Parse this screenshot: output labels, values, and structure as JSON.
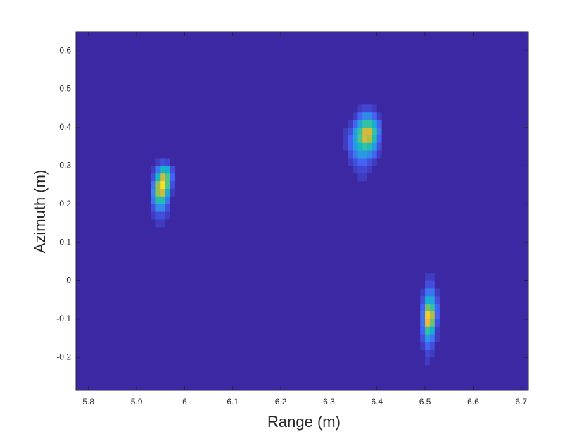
{
  "chart_data": {
    "type": "heatmap",
    "xlabel": "Range (m)",
    "ylabel": "Azimuth (m)",
    "xlim": [
      5.774,
      6.715
    ],
    "ylim": [
      -0.286,
      0.65
    ],
    "xticks": [
      5.8,
      5.9,
      6,
      6.1,
      6.2,
      6.3,
      6.4,
      6.5,
      6.6,
      6.7
    ],
    "yticks": [
      -0.2,
      -0.1,
      0,
      0.1,
      0.2,
      0.3,
      0.4,
      0.5,
      0.6
    ],
    "clim": [
      0,
      1
    ],
    "cell_width": 0.01,
    "cell_height": 0.02,
    "colormap": [
      "#3c28a2",
      "#4560f5",
      "#2d96e6",
      "#10b5cd",
      "#38c59b",
      "#9ebf4a",
      "#f1b83a",
      "#f9fb15"
    ],
    "blocks": [
      {
        "x": [
          5.935,
          5.945,
          5.955,
          5.965,
          5.975
        ],
        "y": [
          0.31,
          0.29,
          0.27,
          0.25,
          0.23,
          0.21,
          0.19,
          0.17,
          0.15
        ],
        "values": [
          [
            0,
            0.05,
            0.1,
            0.08,
            0
          ],
          [
            0.05,
            0.2,
            0.45,
            0.4,
            0.1
          ],
          [
            0.1,
            0.45,
            0.8,
            0.6,
            0.15
          ],
          [
            0.2,
            0.7,
            0.95,
            0.6,
            0.1
          ],
          [
            0.25,
            0.7,
            0.8,
            0.4,
            0.05
          ],
          [
            0.2,
            0.5,
            0.5,
            0.2,
            0
          ],
          [
            0.1,
            0.25,
            0.25,
            0.1,
            0
          ],
          [
            0.05,
            0.1,
            0.1,
            0.05,
            0
          ],
          [
            0,
            0.05,
            0.05,
            0,
            0
          ]
        ]
      },
      {
        "x": [
          6.335,
          6.345,
          6.355,
          6.365,
          6.375,
          6.385,
          6.395,
          6.405,
          6.415
        ],
        "y": [
          0.45,
          0.43,
          0.41,
          0.39,
          0.37,
          0.35,
          0.33,
          0.31,
          0.29,
          0.27
        ],
        "values": [
          [
            0,
            0,
            0,
            0.05,
            0.08,
            0.08,
            0.05,
            0,
            0
          ],
          [
            0,
            0,
            0.05,
            0.15,
            0.25,
            0.25,
            0.15,
            0.05,
            0
          ],
          [
            0,
            0.05,
            0.15,
            0.35,
            0.55,
            0.55,
            0.4,
            0.15,
            0
          ],
          [
            0.05,
            0.1,
            0.3,
            0.55,
            0.8,
            0.8,
            0.55,
            0.2,
            0
          ],
          [
            0.05,
            0.15,
            0.35,
            0.6,
            0.8,
            0.75,
            0.5,
            0.15,
            0
          ],
          [
            0.05,
            0.15,
            0.3,
            0.45,
            0.55,
            0.5,
            0.3,
            0.1,
            0
          ],
          [
            0,
            0.1,
            0.2,
            0.3,
            0.3,
            0.25,
            0.15,
            0.05,
            0
          ],
          [
            0,
            0.05,
            0.1,
            0.15,
            0.15,
            0.1,
            0.05,
            0,
            0
          ],
          [
            0,
            0,
            0.05,
            0.08,
            0.08,
            0.05,
            0,
            0,
            0
          ],
          [
            0,
            0,
            0,
            0.05,
            0.05,
            0,
            0,
            0,
            0
          ]
        ]
      },
      {
        "x": [
          6.495,
          6.505,
          6.515,
          6.525
        ],
        "y": [
          0.01,
          -0.01,
          -0.03,
          -0.05,
          -0.07,
          -0.09,
          -0.11,
          -0.13,
          -0.15,
          -0.17,
          -0.19,
          -0.21
        ],
        "values": [
          [
            0,
            0.05,
            0.05,
            0
          ],
          [
            0,
            0.1,
            0.1,
            0
          ],
          [
            0.05,
            0.2,
            0.2,
            0.05
          ],
          [
            0.1,
            0.4,
            0.35,
            0.1
          ],
          [
            0.15,
            0.65,
            0.55,
            0.15
          ],
          [
            0.2,
            0.9,
            0.75,
            0.15
          ],
          [
            0.2,
            0.85,
            0.65,
            0.1
          ],
          [
            0.15,
            0.55,
            0.4,
            0.05
          ],
          [
            0.1,
            0.3,
            0.2,
            0.05
          ],
          [
            0.05,
            0.15,
            0.1,
            0
          ],
          [
            0,
            0.08,
            0.05,
            0
          ],
          [
            0,
            0.05,
            0,
            0
          ]
        ]
      }
    ]
  }
}
